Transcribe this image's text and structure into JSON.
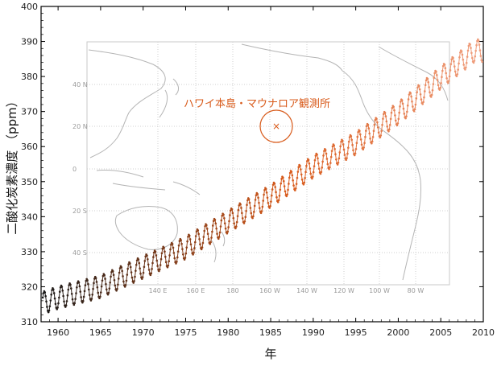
{
  "chart_data": {
    "type": "line",
    "xlabel": "年",
    "ylabel": "二酸化炭素濃度 （ppm）",
    "xlim": [
      1958,
      2010
    ],
    "ylim": [
      310,
      400
    ],
    "x_ticks": [
      "1960",
      "1965",
      "1970",
      "1975",
      "1980",
      "1985",
      "1990",
      "1995",
      "2000",
      "2005",
      "2010"
    ],
    "y_ticks": [
      "310",
      "320",
      "330",
      "340",
      "350",
      "360",
      "370",
      "380",
      "390",
      "400"
    ],
    "grid": false,
    "legend": "none",
    "series": [
      {
        "trend_x": [
          1958,
          1960,
          1965,
          1970,
          1975,
          1980,
          1985,
          1990,
          1995,
          2000,
          2005,
          2009
        ],
        "trend_y": [
          315.2,
          316.9,
          320.0,
          325.6,
          331.1,
          338.6,
          345.9,
          354.3,
          360.9,
          369.5,
          379.7,
          387.4
        ],
        "seasonal_amplitude_ppm": 3.2,
        "color_start": "#1a1a1a",
        "color_end": "#f0a080",
        "marker": "dot"
      }
    ],
    "inset_map": {
      "annotation": "ハワイ本島・マウナロア観測所",
      "marker": "×",
      "lat_labels": [
        "40 N",
        "20 N",
        "0",
        "20 S",
        "40 S"
      ],
      "lon_labels": [
        "140 E",
        "160 E",
        "180",
        "160 W",
        "140 W",
        "120 W",
        "100 W",
        "80 W"
      ]
    }
  },
  "colors": {
    "accent": "#d85a1a",
    "axis": "#000000",
    "map_line": "#b4b4b4"
  }
}
